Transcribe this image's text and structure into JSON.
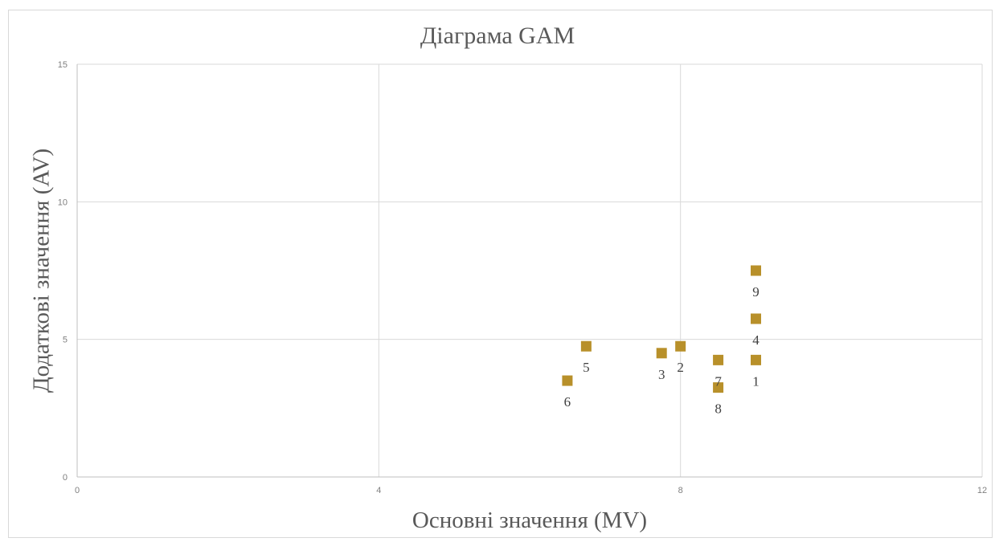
{
  "chart_data": {
    "type": "scatter",
    "title": "Діаграма GAM",
    "xlabel": "Основні значення (MV)",
    "ylabel": "Додаткові значення (AV)",
    "xlim": [
      0,
      12
    ],
    "ylim": [
      0,
      15
    ],
    "xticks": [
      0,
      4,
      8,
      12
    ],
    "yticks": [
      0,
      5,
      10,
      15
    ],
    "grid": true,
    "legend": "none",
    "marker": "square",
    "color": "#b8902a",
    "points": [
      {
        "label": "1",
        "x": 9.0,
        "y": 4.25
      },
      {
        "label": "2",
        "x": 8.0,
        "y": 4.75
      },
      {
        "label": "3",
        "x": 7.75,
        "y": 4.5
      },
      {
        "label": "4",
        "x": 9.0,
        "y": 5.75
      },
      {
        "label": "5",
        "x": 6.75,
        "y": 4.75
      },
      {
        "label": "6",
        "x": 6.5,
        "y": 3.5
      },
      {
        "label": "7",
        "x": 8.5,
        "y": 4.25
      },
      {
        "label": "8",
        "x": 8.5,
        "y": 3.25
      },
      {
        "label": "9",
        "x": 9.0,
        "y": 7.5
      }
    ]
  }
}
